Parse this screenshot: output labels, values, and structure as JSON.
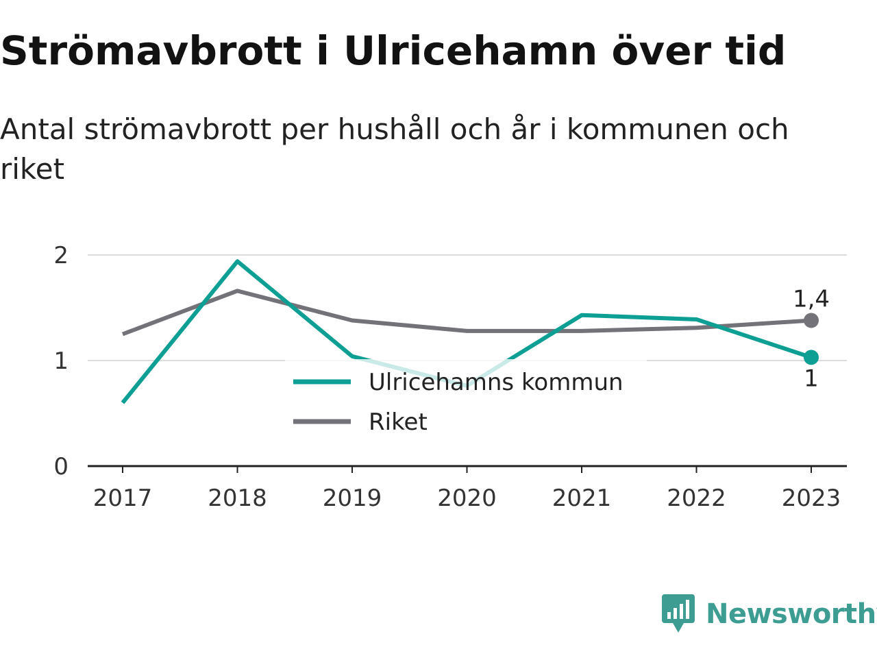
{
  "title": "Strömavbrott i Ulricehamn över tid",
  "subtitle": "Antal strömavbrott per hushåll och år i kommunen och riket",
  "brand": "Newsworthy",
  "chart_data": {
    "type": "line",
    "x": [
      "2017",
      "2018",
      "2019",
      "2020",
      "2021",
      "2022",
      "2023"
    ],
    "ylim": [
      0,
      2
    ],
    "yticks": [
      "0",
      "1",
      "2"
    ],
    "grid": true,
    "legend_position": "center",
    "series": [
      {
        "name": "Ulricehamns kommun",
        "color": "#0e9f94",
        "values": [
          0.6,
          1.94,
          1.04,
          0.76,
          1.43,
          1.39,
          1.03
        ],
        "end_label": "1"
      },
      {
        "name": "Riket",
        "color": "#737279",
        "values": [
          1.25,
          1.66,
          1.38,
          1.28,
          1.28,
          1.31,
          1.38
        ],
        "end_label": "1,4"
      }
    ]
  }
}
